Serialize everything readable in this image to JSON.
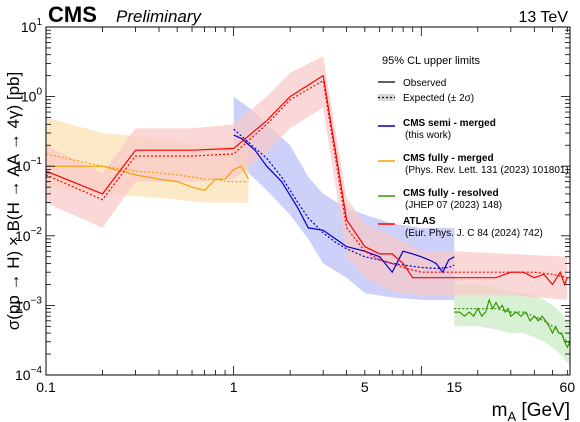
{
  "chart_data": {
    "type": "line",
    "header": {
      "experiment": "CMS",
      "status": "Preliminary",
      "energy": "13 TeV"
    },
    "xlabel": "m_A [GeV]",
    "ylabel": "σ(pp → H) × B(H → AA → 4γ) [pb]",
    "xscale": "log",
    "yscale": "log",
    "xlim": [
      0.1,
      62
    ],
    "ylim": [
      0.0001,
      10
    ],
    "x_ticks": [
      {
        "value": 0.1,
        "label": "0.1"
      },
      {
        "value": 1,
        "label": "1"
      },
      {
        "value": 5,
        "label": "5"
      },
      {
        "value": 15,
        "label": "15"
      },
      {
        "value": 60,
        "label": "60"
      }
    ],
    "y_ticks": [
      {
        "value": 0.0001,
        "label": "10",
        "exp": "−4"
      },
      {
        "value": 0.001,
        "label": "10",
        "exp": "−3"
      },
      {
        "value": 0.01,
        "label": "10",
        "exp": "−2"
      },
      {
        "value": 0.1,
        "label": "10",
        "exp": "−1"
      },
      {
        "value": 1,
        "label": "10",
        "exp": "0"
      },
      {
        "value": 10,
        "label": "10",
        "exp": "1"
      }
    ],
    "legend": {
      "placement": "top-right",
      "title": "95% CL upper limits",
      "entries": [
        {
          "key": "observed",
          "label": "Observed",
          "color": "#000000",
          "style": "solid"
        },
        {
          "key": "expected",
          "label": "Expected (± 2σ)",
          "color": "#000000",
          "style": "dotted"
        }
      ]
    },
    "series": [
      {
        "name": "CMS semi - merged",
        "note": "(this work)",
        "color": "#0000cc",
        "band_color": "#b8bcf6",
        "observed": [
          [
            1.0,
            0.28
          ],
          [
            1.1,
            0.25
          ],
          [
            1.3,
            0.17
          ],
          [
            1.5,
            0.1
          ],
          [
            1.8,
            0.06
          ],
          [
            2.2,
            0.025
          ],
          [
            2.5,
            0.013
          ],
          [
            3.0,
            0.012
          ],
          [
            3.5,
            0.009
          ],
          [
            4.0,
            0.007
          ],
          [
            5.0,
            0.006
          ],
          [
            6.0,
            0.005
          ],
          [
            7.0,
            0.003
          ],
          [
            8.0,
            0.006
          ],
          [
            9.0,
            0.0055
          ],
          [
            10.0,
            0.005
          ],
          [
            11.0,
            0.0045
          ],
          [
            12.0,
            0.004
          ],
          [
            13.0,
            0.003
          ],
          [
            14.0,
            0.0045
          ],
          [
            15.0,
            0.005
          ]
        ],
        "expected": [
          [
            1.0,
            0.34
          ],
          [
            1.2,
            0.22
          ],
          [
            1.5,
            0.13
          ],
          [
            1.8,
            0.07
          ],
          [
            2.2,
            0.03
          ],
          [
            2.5,
            0.018
          ],
          [
            3.0,
            0.011
          ],
          [
            3.5,
            0.008
          ],
          [
            4.0,
            0.0065
          ],
          [
            5.0,
            0.005
          ],
          [
            6.0,
            0.0045
          ],
          [
            7.0,
            0.004
          ],
          [
            8.0,
            0.0038
          ],
          [
            10.0,
            0.0035
          ],
          [
            12.0,
            0.0034
          ],
          [
            14.0,
            0.0035
          ],
          [
            15.0,
            0.0038
          ]
        ],
        "band_upper": [
          [
            1.0,
            1.0
          ],
          [
            1.2,
            0.7
          ],
          [
            1.5,
            0.4
          ],
          [
            2.0,
            0.2
          ],
          [
            2.5,
            0.07
          ],
          [
            3.0,
            0.04
          ],
          [
            4.0,
            0.025
          ],
          [
            5.0,
            0.02
          ],
          [
            7.0,
            0.015
          ],
          [
            10.0,
            0.013
          ],
          [
            15.0,
            0.013
          ]
        ],
        "band_lower": [
          [
            1.0,
            0.12
          ],
          [
            1.2,
            0.08
          ],
          [
            1.5,
            0.045
          ],
          [
            2.0,
            0.02
          ],
          [
            2.5,
            0.009
          ],
          [
            3.0,
            0.004
          ],
          [
            4.0,
            0.0025
          ],
          [
            5.0,
            0.0015
          ],
          [
            7.0,
            0.0013
          ],
          [
            10.0,
            0.0012
          ],
          [
            15.0,
            0.0012
          ]
        ]
      },
      {
        "name": "CMS fully - merged",
        "note": "(Phys. Rev. Lett. 131 (2023) 101801)",
        "color": "#f5a000",
        "band_color": "#fbe0b0",
        "observed": [
          [
            0.1,
            0.1
          ],
          [
            0.2,
            0.1
          ],
          [
            0.3,
            0.075
          ],
          [
            0.4,
            0.065
          ],
          [
            0.5,
            0.06
          ],
          [
            0.6,
            0.05
          ],
          [
            0.7,
            0.045
          ],
          [
            0.8,
            0.065
          ],
          [
            0.9,
            0.065
          ],
          [
            1.0,
            0.09
          ],
          [
            1.1,
            0.1
          ],
          [
            1.2,
            0.065
          ]
        ],
        "expected": [
          [
            0.1,
            0.15
          ],
          [
            0.2,
            0.1
          ],
          [
            0.3,
            0.085
          ],
          [
            0.4,
            0.08
          ],
          [
            0.5,
            0.075
          ],
          [
            0.6,
            0.07
          ],
          [
            0.7,
            0.065
          ],
          [
            0.8,
            0.065
          ],
          [
            0.9,
            0.06
          ],
          [
            1.0,
            0.06
          ],
          [
            1.2,
            0.06
          ]
        ],
        "band_upper": [
          [
            0.1,
            0.5
          ],
          [
            0.2,
            0.3
          ],
          [
            0.4,
            0.25
          ],
          [
            0.7,
            0.2
          ],
          [
            1.0,
            0.2
          ],
          [
            1.2,
            0.25
          ]
        ],
        "band_lower": [
          [
            0.1,
            0.05
          ],
          [
            0.2,
            0.04
          ],
          [
            0.4,
            0.035
          ],
          [
            0.7,
            0.03
          ],
          [
            1.0,
            0.03
          ],
          [
            1.2,
            0.03
          ]
        ]
      },
      {
        "name": "CMS fully - resolved",
        "note": "(JHEP 07 (2023) 148)",
        "color": "#339900",
        "band_color": "#c8eac0",
        "observed": [
          [
            15,
            0.0008
          ],
          [
            16,
            0.0008
          ],
          [
            17,
            0.0007
          ],
          [
            18,
            0.0008
          ],
          [
            19,
            0.0007
          ],
          [
            20,
            0.0009
          ],
          [
            21,
            0.0007
          ],
          [
            22,
            0.0008
          ],
          [
            23,
            0.0012
          ],
          [
            24,
            0.0009
          ],
          [
            25,
            0.0011
          ],
          [
            26,
            0.0009
          ],
          [
            27,
            0.001
          ],
          [
            28,
            0.0008
          ],
          [
            29,
            0.0009
          ],
          [
            30,
            0.0007
          ],
          [
            32,
            0.0008
          ],
          [
            34,
            0.0007
          ],
          [
            36,
            0.0008
          ],
          [
            38,
            0.0006
          ],
          [
            40,
            0.0007
          ],
          [
            42,
            0.0006
          ],
          [
            44,
            0.0007
          ],
          [
            46,
            0.0006
          ],
          [
            48,
            0.0005
          ],
          [
            50,
            0.0004
          ],
          [
            52,
            0.0005
          ],
          [
            54,
            0.0004
          ],
          [
            56,
            0.0004
          ],
          [
            58,
            0.0003
          ],
          [
            60,
            0.00025
          ],
          [
            62,
            0.0003
          ]
        ],
        "expected": [
          [
            15,
            0.0009
          ],
          [
            20,
            0.0009
          ],
          [
            25,
            0.0009
          ],
          [
            30,
            0.0008
          ],
          [
            35,
            0.0008
          ],
          [
            40,
            0.0007
          ],
          [
            45,
            0.0006
          ],
          [
            50,
            0.0005
          ],
          [
            55,
            0.0004
          ],
          [
            60,
            0.0003
          ],
          [
            62,
            0.0003
          ]
        ],
        "band_upper": [
          [
            15,
            0.002
          ],
          [
            20,
            0.002
          ],
          [
            25,
            0.0018
          ],
          [
            30,
            0.0016
          ],
          [
            35,
            0.0015
          ],
          [
            40,
            0.0014
          ],
          [
            45,
            0.0012
          ],
          [
            50,
            0.001
          ],
          [
            55,
            0.0008
          ],
          [
            60,
            0.0006
          ],
          [
            62,
            0.0006
          ]
        ],
        "band_lower": [
          [
            15,
            0.0005
          ],
          [
            20,
            0.0005
          ],
          [
            25,
            0.00045
          ],
          [
            30,
            0.0004
          ],
          [
            35,
            0.0004
          ],
          [
            40,
            0.00035
          ],
          [
            45,
            0.0003
          ],
          [
            50,
            0.00025
          ],
          [
            55,
            0.0002
          ],
          [
            60,
            0.00015
          ],
          [
            62,
            0.00015
          ]
        ]
      },
      {
        "name": "ATLAS",
        "note": "(Eur. Phys. J. C 84 (2024) 742)",
        "color": "#ff0000",
        "band_color": "#f9c8c8",
        "observed": [
          [
            0.1,
            0.085
          ],
          [
            0.2,
            0.04
          ],
          [
            0.3,
            0.17
          ],
          [
            0.6,
            0.17
          ],
          [
            1.0,
            0.18
          ],
          [
            1.5,
            0.45
          ],
          [
            2.0,
            1.0
          ],
          [
            3.0,
            2.0
          ],
          [
            4.0,
            0.017
          ],
          [
            5.0,
            0.007
          ],
          [
            6.0,
            0.0055
          ],
          [
            7.0,
            0.0055
          ],
          [
            8.0,
            0.004
          ],
          [
            9.0,
            0.0025
          ],
          [
            10.0,
            0.0025
          ],
          [
            12.0,
            0.0025
          ],
          [
            15.0,
            0.0025
          ],
          [
            20.0,
            0.0025
          ],
          [
            25.0,
            0.0025
          ],
          [
            30.0,
            0.003
          ],
          [
            35.0,
            0.003
          ],
          [
            40.0,
            0.0025
          ],
          [
            45.0,
            0.0028
          ],
          [
            50.0,
            0.002
          ],
          [
            55.0,
            0.003
          ],
          [
            58.0,
            0.002
          ],
          [
            60.0,
            0.0025
          ],
          [
            62.0,
            0.0025
          ]
        ],
        "expected": [
          [
            0.1,
            0.075
          ],
          [
            0.2,
            0.033
          ],
          [
            0.3,
            0.14
          ],
          [
            0.6,
            0.14
          ],
          [
            1.0,
            0.15
          ],
          [
            1.5,
            0.4
          ],
          [
            2.0,
            0.9
          ],
          [
            3.0,
            1.7
          ],
          [
            4.0,
            0.013
          ],
          [
            5.0,
            0.006
          ],
          [
            6.0,
            0.0045
          ],
          [
            7.0,
            0.004
          ],
          [
            8.0,
            0.0035
          ],
          [
            10.0,
            0.003
          ],
          [
            15.0,
            0.003
          ],
          [
            20.0,
            0.003
          ],
          [
            30.0,
            0.003
          ],
          [
            40.0,
            0.003
          ],
          [
            50.0,
            0.0028
          ],
          [
            60.0,
            0.0025
          ]
        ],
        "band_upper": [
          [
            0.1,
            0.2
          ],
          [
            0.2,
            0.08
          ],
          [
            0.3,
            0.35
          ],
          [
            0.6,
            0.35
          ],
          [
            1.0,
            0.4
          ],
          [
            1.5,
            1.0
          ],
          [
            2.0,
            2.2
          ],
          [
            3.0,
            3.8
          ],
          [
            4.0,
            0.035
          ],
          [
            5.0,
            0.015
          ],
          [
            7.0,
            0.01
          ],
          [
            10.0,
            0.006
          ],
          [
            15.0,
            0.006
          ],
          [
            30.0,
            0.0055
          ],
          [
            60.0,
            0.005
          ]
        ],
        "band_lower": [
          [
            0.1,
            0.03
          ],
          [
            0.2,
            0.013
          ],
          [
            0.3,
            0.06
          ],
          [
            0.6,
            0.06
          ],
          [
            1.0,
            0.065
          ],
          [
            1.5,
            0.16
          ],
          [
            2.0,
            0.35
          ],
          [
            3.0,
            0.7
          ],
          [
            4.0,
            0.005
          ],
          [
            5.0,
            0.0025
          ],
          [
            7.0,
            0.0016
          ],
          [
            10.0,
            0.0014
          ],
          [
            15.0,
            0.0014
          ],
          [
            30.0,
            0.0014
          ],
          [
            60.0,
            0.0012
          ]
        ]
      }
    ]
  }
}
